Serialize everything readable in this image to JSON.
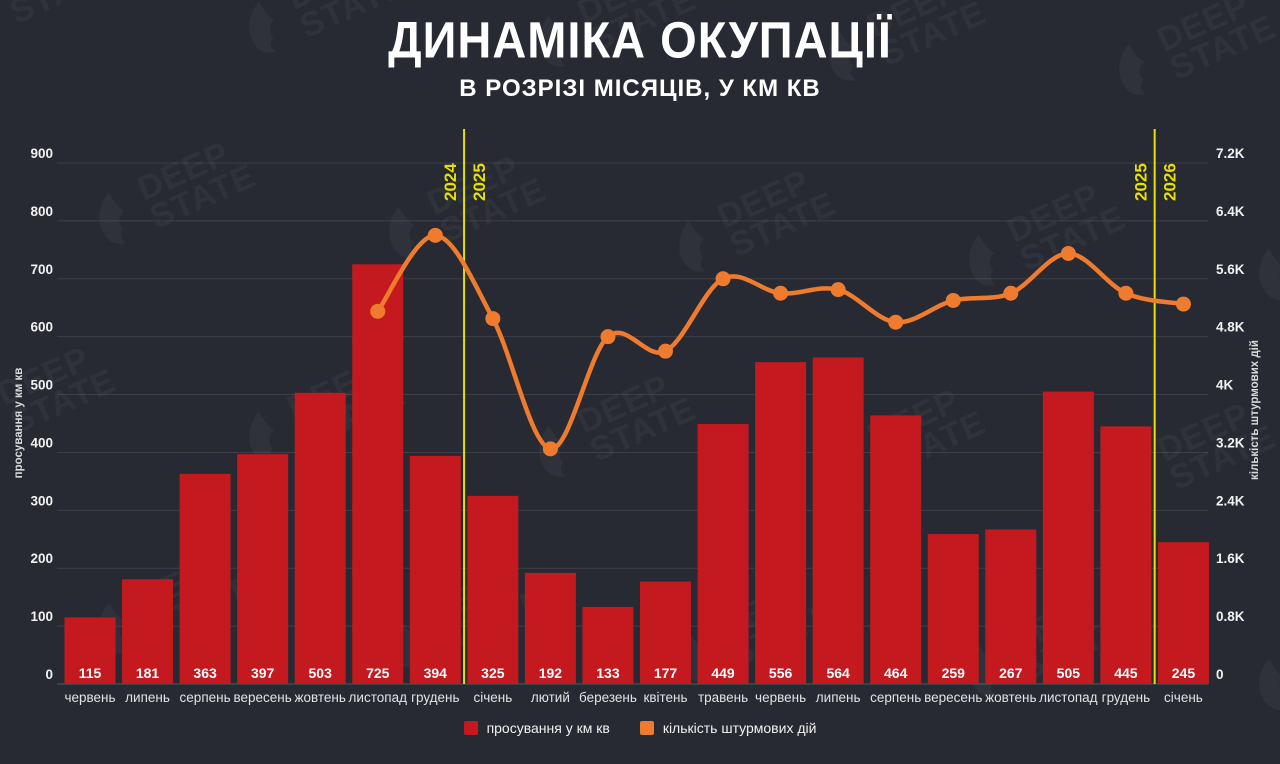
{
  "header": {
    "title": "ДИНАМІКА ОКУПАЦІЇ",
    "subtitle": "В РОЗРІЗІ МІСЯЦІВ, У КМ КВ"
  },
  "watermark": {
    "line1": "DEEP",
    "line2": "STATE"
  },
  "chart_data": {
    "type": "combo-bar-line",
    "categories": [
      "червень",
      "липень",
      "серпень",
      "вересень",
      "жовтень",
      "листопад",
      "грудень",
      "січень",
      "лютий",
      "березень",
      "квітень",
      "травень",
      "червень",
      "липень",
      "серпень",
      "вересень",
      "жовтень",
      "листопад",
      "грудень",
      "січень"
    ],
    "series": [
      {
        "name": "просування у км кв",
        "type": "bar",
        "axis": "left",
        "color": "#c41a1f",
        "values": [
          115,
          181,
          363,
          397,
          503,
          725,
          394,
          325,
          192,
          133,
          177,
          449,
          556,
          564,
          464,
          259,
          267,
          505,
          445,
          245
        ]
      },
      {
        "name": "кількість штурмових дій",
        "type": "line",
        "axis": "right",
        "color": "#ee7b2e",
        "values": [
          null,
          null,
          null,
          null,
          null,
          5150,
          6200,
          5050,
          3250,
          4800,
          4600,
          5600,
          5400,
          5450,
          5000,
          5300,
          5400,
          5950,
          5400,
          5250
        ]
      }
    ],
    "left_axis": {
      "label": "просування у км кв",
      "min": 0,
      "max": 900,
      "step": 100,
      "ticks": [
        "0",
        "100",
        "200",
        "300",
        "400",
        "500",
        "600",
        "700",
        "800",
        "900"
      ]
    },
    "right_axis": {
      "label": "кількість штурмових дій",
      "min": 0,
      "max": 7200,
      "step": 800,
      "ticks": [
        "0",
        "0.8K",
        "1.6K",
        "2.4K",
        "3.2K",
        "4K",
        "4.8K",
        "5.6K",
        "6.4K",
        "7.2K"
      ]
    },
    "year_dividers": [
      {
        "between_index": 6,
        "left_label": "2024",
        "right_label": "2025"
      },
      {
        "between_index": 18,
        "left_label": "2025",
        "right_label": "2026"
      }
    ],
    "divider_color": "#e8e000",
    "grid": true,
    "legend_position": "bottom",
    "legend": [
      {
        "label": "просування у км кв",
        "color": "#c41a1f"
      },
      {
        "label": "кількість штурмових дій",
        "color": "#ee7b2e"
      }
    ],
    "text_colors": {
      "tick": "#f2f2f2",
      "bar_value": "#ffffff",
      "month": "#e3e3e3",
      "axis_title": "#d8d8d8"
    }
  }
}
